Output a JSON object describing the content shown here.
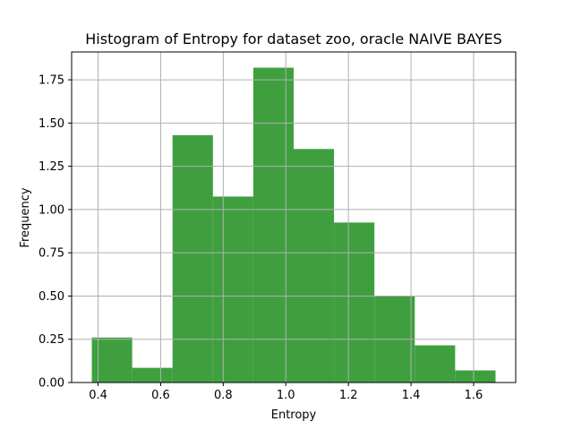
{
  "chart_data": {
    "type": "bar",
    "title": "Histogram of Entropy for dataset zoo, oracle NAIVE BAYES",
    "xlabel": "Entropy",
    "ylabel": "Frequency",
    "bin_edges": [
      0.38,
      0.509,
      0.638,
      0.767,
      0.896,
      1.025,
      1.154,
      1.283,
      1.412,
      1.541,
      1.67
    ],
    "values": [
      0.26,
      0.085,
      1.43,
      1.075,
      1.82,
      1.35,
      0.925,
      0.5,
      0.215,
      0.07
    ],
    "xlim": [
      0.3155,
      1.7345
    ],
    "ylim": [
      0,
      1.911
    ],
    "xticks": [
      0.4,
      0.6,
      0.8,
      1.0,
      1.2,
      1.4,
      1.6
    ],
    "xtick_labels": [
      "0.4",
      "0.6",
      "0.8",
      "1.0",
      "1.2",
      "1.4",
      "1.6"
    ],
    "yticks": [
      0,
      0.25,
      0.5,
      0.75,
      1.0,
      1.25,
      1.5,
      1.75
    ],
    "ytick_labels": [
      "0.00",
      "0.25",
      "0.50",
      "0.75",
      "1.00",
      "1.25",
      "1.50",
      "1.75"
    ],
    "grid": true,
    "bar_color": "#3f9f3f"
  }
}
